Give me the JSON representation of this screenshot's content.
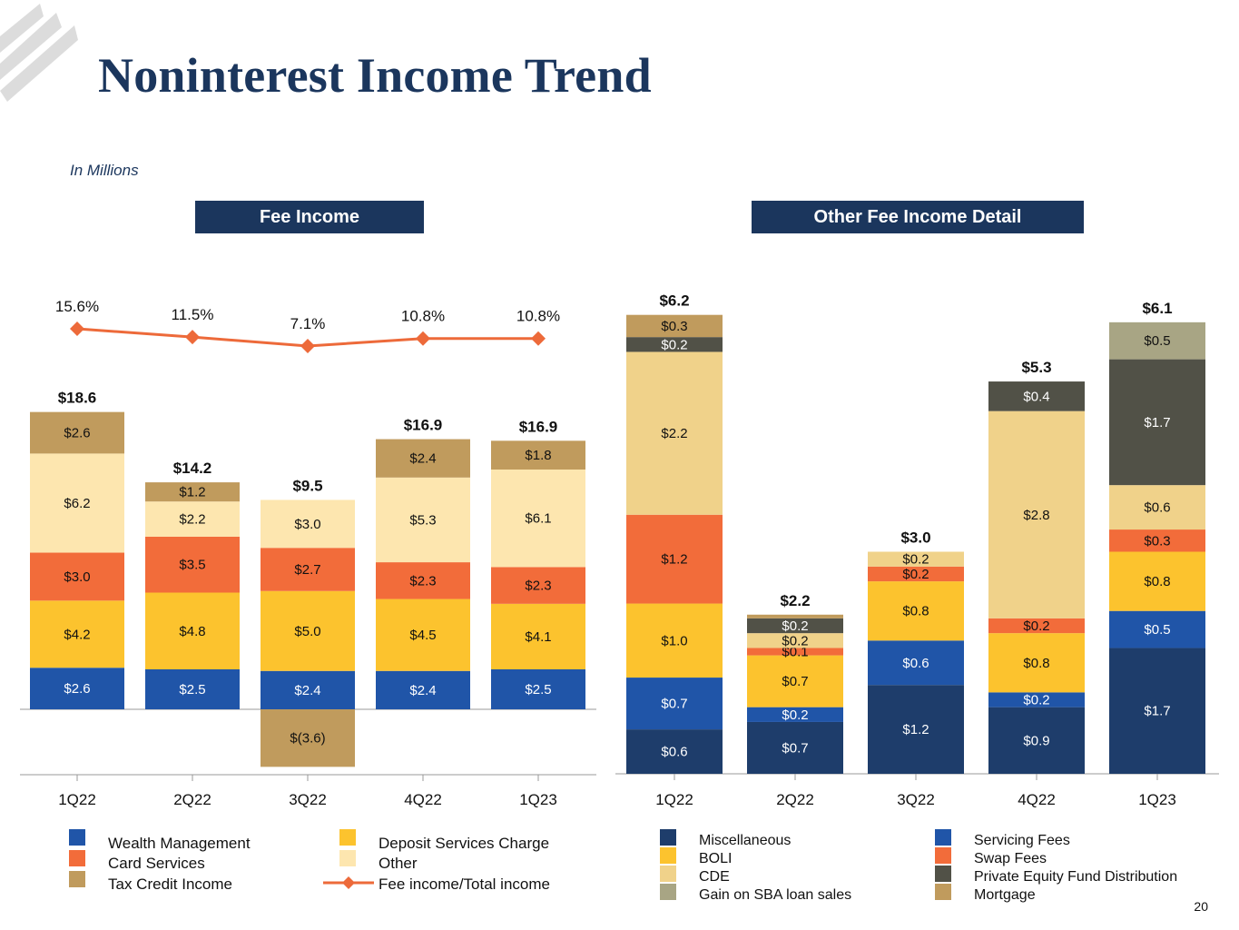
{
  "page": {
    "title": "Noninterest Income Trend",
    "subtitle": "In Millions",
    "page_number": "20"
  },
  "headers": {
    "left": "Fee Income",
    "right": "Other Fee Income Detail"
  },
  "colors": {
    "navy": "#1b365d",
    "wealth": "#2055a8",
    "card": "#f26c3a",
    "tax": "#c09b5d",
    "deposit": "#fcc32e",
    "other": "#fde6af",
    "ratio_line": "#ed6a3a",
    "misc": "#1e3d6b",
    "boli": "#fcc32e",
    "cde": "#f0d28a",
    "sba": "#a8a584",
    "servicing": "#2055a8",
    "swap": "#f26c3a",
    "pe": "#515147",
    "mortgage": "#c09b5d"
  },
  "chart_data": [
    {
      "type": "stacked-bar-with-line",
      "title": "Fee Income",
      "categories": [
        "1Q22",
        "2Q22",
        "3Q22",
        "4Q22",
        "1Q23"
      ],
      "series": [
        {
          "name": "Wealth Management",
          "values": [
            2.6,
            2.5,
            2.4,
            2.4,
            2.5
          ],
          "labels": [
            "$2.6",
            "$2.5",
            "$2.4",
            "$2.4",
            "$2.5"
          ]
        },
        {
          "name": "Deposit Services Charge",
          "values": [
            4.2,
            4.8,
            5.0,
            4.5,
            4.1
          ],
          "labels": [
            "$4.2",
            "$4.8",
            "$5.0",
            "$4.5",
            "$4.1"
          ]
        },
        {
          "name": "Card Services",
          "values": [
            3.0,
            3.5,
            2.7,
            2.3,
            2.3
          ],
          "labels": [
            "$3.0",
            "$3.5",
            "$2.7",
            "$2.3",
            "$2.3"
          ]
        },
        {
          "name": "Other",
          "values": [
            6.2,
            2.2,
            3.0,
            5.3,
            6.1
          ],
          "labels": [
            "$6.2",
            "$2.2",
            "$3.0",
            "$5.3",
            "$6.1"
          ]
        },
        {
          "name": "Tax Credit Income",
          "values": [
            2.6,
            1.2,
            -3.6,
            2.4,
            1.8
          ],
          "labels": [
            "$2.6",
            "$1.2",
            "$(3.6)",
            "$2.4",
            "$1.8"
          ]
        }
      ],
      "totals": [
        18.6,
        14.2,
        9.5,
        16.9,
        16.9
      ],
      "total_labels": [
        "$18.6",
        "$14.2",
        "$9.5",
        "$16.9",
        "$16.9"
      ],
      "line": {
        "name": "Fee income/Total income",
        "values": [
          15.6,
          11.5,
          7.1,
          10.8,
          10.8
        ],
        "labels": [
          "15.6%",
          "11.5%",
          "7.1%",
          "10.8%",
          "10.8%"
        ]
      },
      "legend": [
        {
          "name": "Wealth Management",
          "color_key": "wealth",
          "marker": "square"
        },
        {
          "name": "Card Services",
          "color_key": "card",
          "marker": "square"
        },
        {
          "name": "Tax Credit Income",
          "color_key": "tax",
          "marker": "square"
        },
        {
          "name": "Deposit Services Charge",
          "color_key": "deposit",
          "marker": "square"
        },
        {
          "name": "Other",
          "color_key": "other",
          "marker": "square"
        },
        {
          "name": "Fee income/Total income",
          "color_key": "ratio_line",
          "marker": "line"
        }
      ]
    },
    {
      "type": "stacked-bar",
      "title": "Other Fee Income Detail",
      "categories": [
        "1Q22",
        "2Q22",
        "3Q22",
        "4Q22",
        "1Q23"
      ],
      "series": [
        {
          "name": "Miscellaneous",
          "values": [
            0.6,
            0.7,
            1.2,
            0.9,
            1.7
          ],
          "labels": [
            "$0.6",
            "$0.7",
            "$1.2",
            "$0.9",
            "$1.7"
          ]
        },
        {
          "name": "Servicing Fees",
          "values": [
            0.7,
            0.2,
            0.6,
            0.2,
            0.5
          ],
          "labels": [
            "$0.7",
            "$0.2",
            "$0.6",
            "$0.2",
            "$0.5"
          ]
        },
        {
          "name": "BOLI",
          "values": [
            1.0,
            0.7,
            0.8,
            0.8,
            0.8
          ],
          "labels": [
            "$1.0",
            "$0.7",
            "$0.8",
            "$0.8",
            "$0.8"
          ]
        },
        {
          "name": "Swap Fees",
          "values": [
            1.2,
            0.1,
            0.2,
            0.2,
            0.3
          ],
          "labels": [
            "$1.2",
            "$0.1",
            "$0.2",
            "$0.2",
            "$0.3"
          ]
        },
        {
          "name": "CDE",
          "values": [
            2.2,
            0.2,
            0.2,
            2.8,
            0.6
          ],
          "labels": [
            "$2.2",
            "$0.2",
            "$0.2",
            "$2.8",
            "$0.6"
          ]
        },
        {
          "name": "Private Equity Fund Distribution",
          "values": [
            0.2,
            0.2,
            0,
            0.4,
            1.7
          ],
          "labels": [
            "$0.2",
            "$0.2",
            "",
            "$0.4",
            "$1.7"
          ]
        },
        {
          "name": "Gain on SBA loan sales",
          "values": [
            0,
            0,
            0,
            0,
            0.5
          ],
          "labels": [
            "",
            "",
            "",
            "",
            "$0.5"
          ]
        },
        {
          "name": "Mortgage",
          "values": [
            0.3,
            0.05,
            0,
            0,
            0
          ],
          "labels": [
            "$0.3",
            "",
            "",
            "",
            ""
          ]
        }
      ],
      "totals": [
        6.2,
        2.2,
        3.0,
        5.3,
        6.1
      ],
      "total_labels": [
        "$6.2",
        "$2.2",
        "$3.0",
        "$5.3",
        "$6.1"
      ],
      "legend": [
        {
          "name": "Miscellaneous",
          "color_key": "misc"
        },
        {
          "name": "BOLI",
          "color_key": "boli"
        },
        {
          "name": "CDE",
          "color_key": "cde"
        },
        {
          "name": "Gain on SBA loan sales",
          "color_key": "sba"
        },
        {
          "name": "Servicing Fees",
          "color_key": "servicing"
        },
        {
          "name": "Swap Fees",
          "color_key": "swap"
        },
        {
          "name": "Private Equity Fund Distribution",
          "color_key": "pe"
        },
        {
          "name": "Mortgage",
          "color_key": "mortgage"
        }
      ]
    }
  ]
}
